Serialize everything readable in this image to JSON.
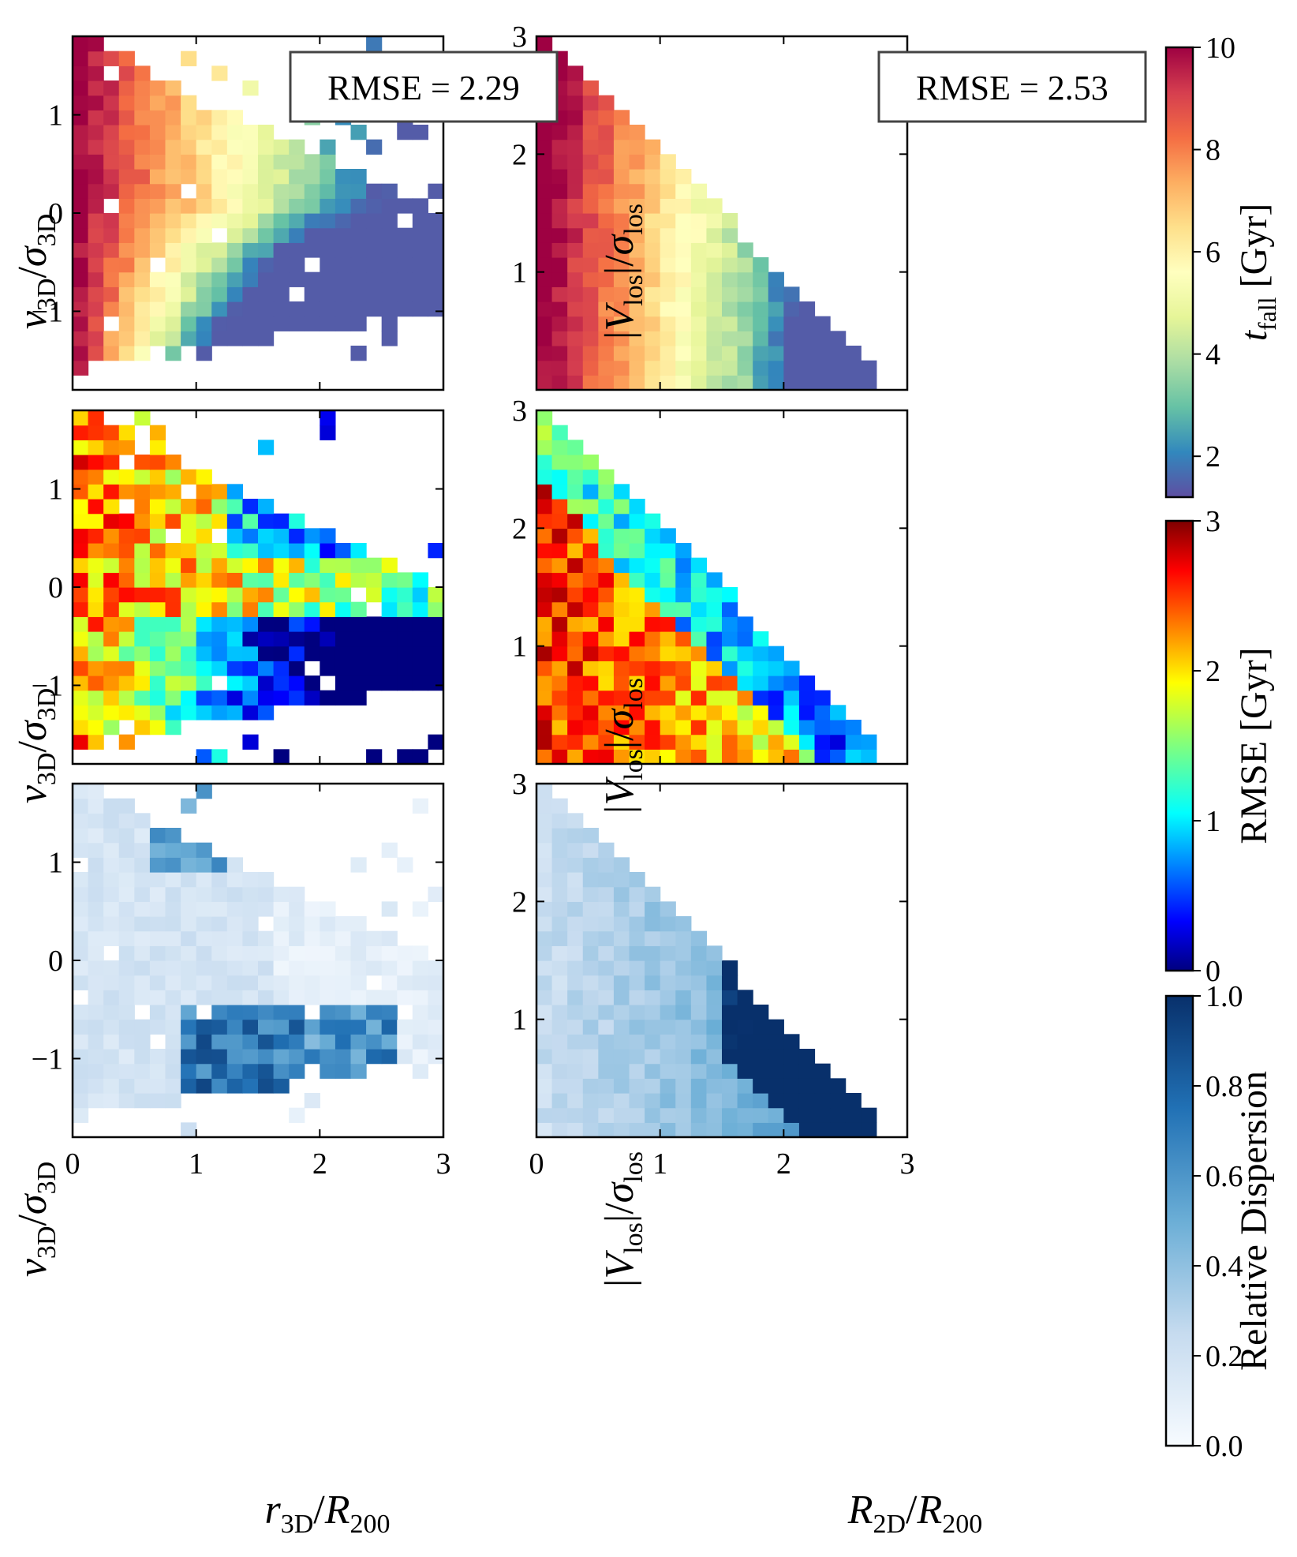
{
  "figure": {
    "row_labels": [
      "t_fall",
      "RMSE",
      "Relative Dispersion"
    ],
    "col_x_labels": [
      "r3D/R200",
      "R2D/R200"
    ],
    "col_y_labels": [
      "v3D/σ3D",
      "|Vlos|/σlos"
    ]
  },
  "chart_data": [
    {
      "type": "heatmap",
      "name": "tfall-3d",
      "x_range": [
        0,
        3
      ],
      "y_range": [
        -1.8,
        1.8
      ],
      "x_ticks": [
        "0",
        "1",
        "2",
        "3"
      ],
      "y_ticks": [
        "−1",
        "0",
        "1"
      ],
      "xlabel": "r3D/R200",
      "ylabel": "v3D/σ3D",
      "colormap": "Spectral_r",
      "clim": [
        1,
        10
      ],
      "annotation": "RMSE = 2.29",
      "cells_note": "approximate cell values estimated from colors"
    },
    {
      "type": "heatmap",
      "name": "tfall-2d",
      "x_range": [
        0,
        3
      ],
      "y_range": [
        0,
        3
      ],
      "x_ticks": [
        "0",
        "1",
        "2",
        "3"
      ],
      "y_ticks": [
        "1",
        "2",
        "3"
      ],
      "xlabel": "R2D/R200",
      "ylabel": "|Vlos|/σlos",
      "colormap": "Spectral_r",
      "clim": [
        1,
        10
      ],
      "annotation": "RMSE = 2.53"
    },
    {
      "type": "heatmap",
      "name": "rmse-3d",
      "x_range": [
        0,
        3
      ],
      "y_range": [
        -1.8,
        1.8
      ],
      "colormap": "jet",
      "clim": [
        0,
        3
      ]
    },
    {
      "type": "heatmap",
      "name": "rmse-2d",
      "x_range": [
        0,
        3
      ],
      "y_range": [
        0,
        3
      ],
      "colormap": "jet",
      "clim": [
        0,
        3
      ]
    },
    {
      "type": "heatmap",
      "name": "disp-3d",
      "x_range": [
        0,
        3
      ],
      "y_range": [
        -1.8,
        1.8
      ],
      "colormap": "Blues",
      "clim": [
        0,
        1
      ]
    },
    {
      "type": "heatmap",
      "name": "disp-2d",
      "x_range": [
        0,
        3
      ],
      "y_range": [
        0,
        3
      ],
      "colormap": "Blues",
      "clim": [
        0,
        1
      ]
    }
  ],
  "colorbars": [
    {
      "name": "tfall-colorbar",
      "label": "t_fall [Gyr]",
      "ticks": [
        "2",
        "4",
        "6",
        "8",
        "10"
      ],
      "tick_values": [
        2,
        4,
        6,
        8,
        10
      ],
      "range": [
        1.2,
        10
      ]
    },
    {
      "name": "rmse-colorbar",
      "label": "RMSE [Gyr]",
      "ticks": [
        "0",
        "1",
        "2",
        "3"
      ],
      "tick_values": [
        0,
        1,
        2,
        3
      ],
      "range": [
        0,
        3
      ]
    },
    {
      "name": "disp-colorbar",
      "label": "Relative Dispersion",
      "ticks": [
        "0.0",
        "0.2",
        "0.4",
        "0.6",
        "0.8",
        "1.0"
      ],
      "tick_values": [
        0,
        0.2,
        0.4,
        0.6,
        0.8,
        1.0
      ],
      "range": [
        0,
        1
      ]
    }
  ],
  "annotations": {
    "rmse_3d": "RMSE = 2.29",
    "rmse_2d": "RMSE = 2.53"
  }
}
